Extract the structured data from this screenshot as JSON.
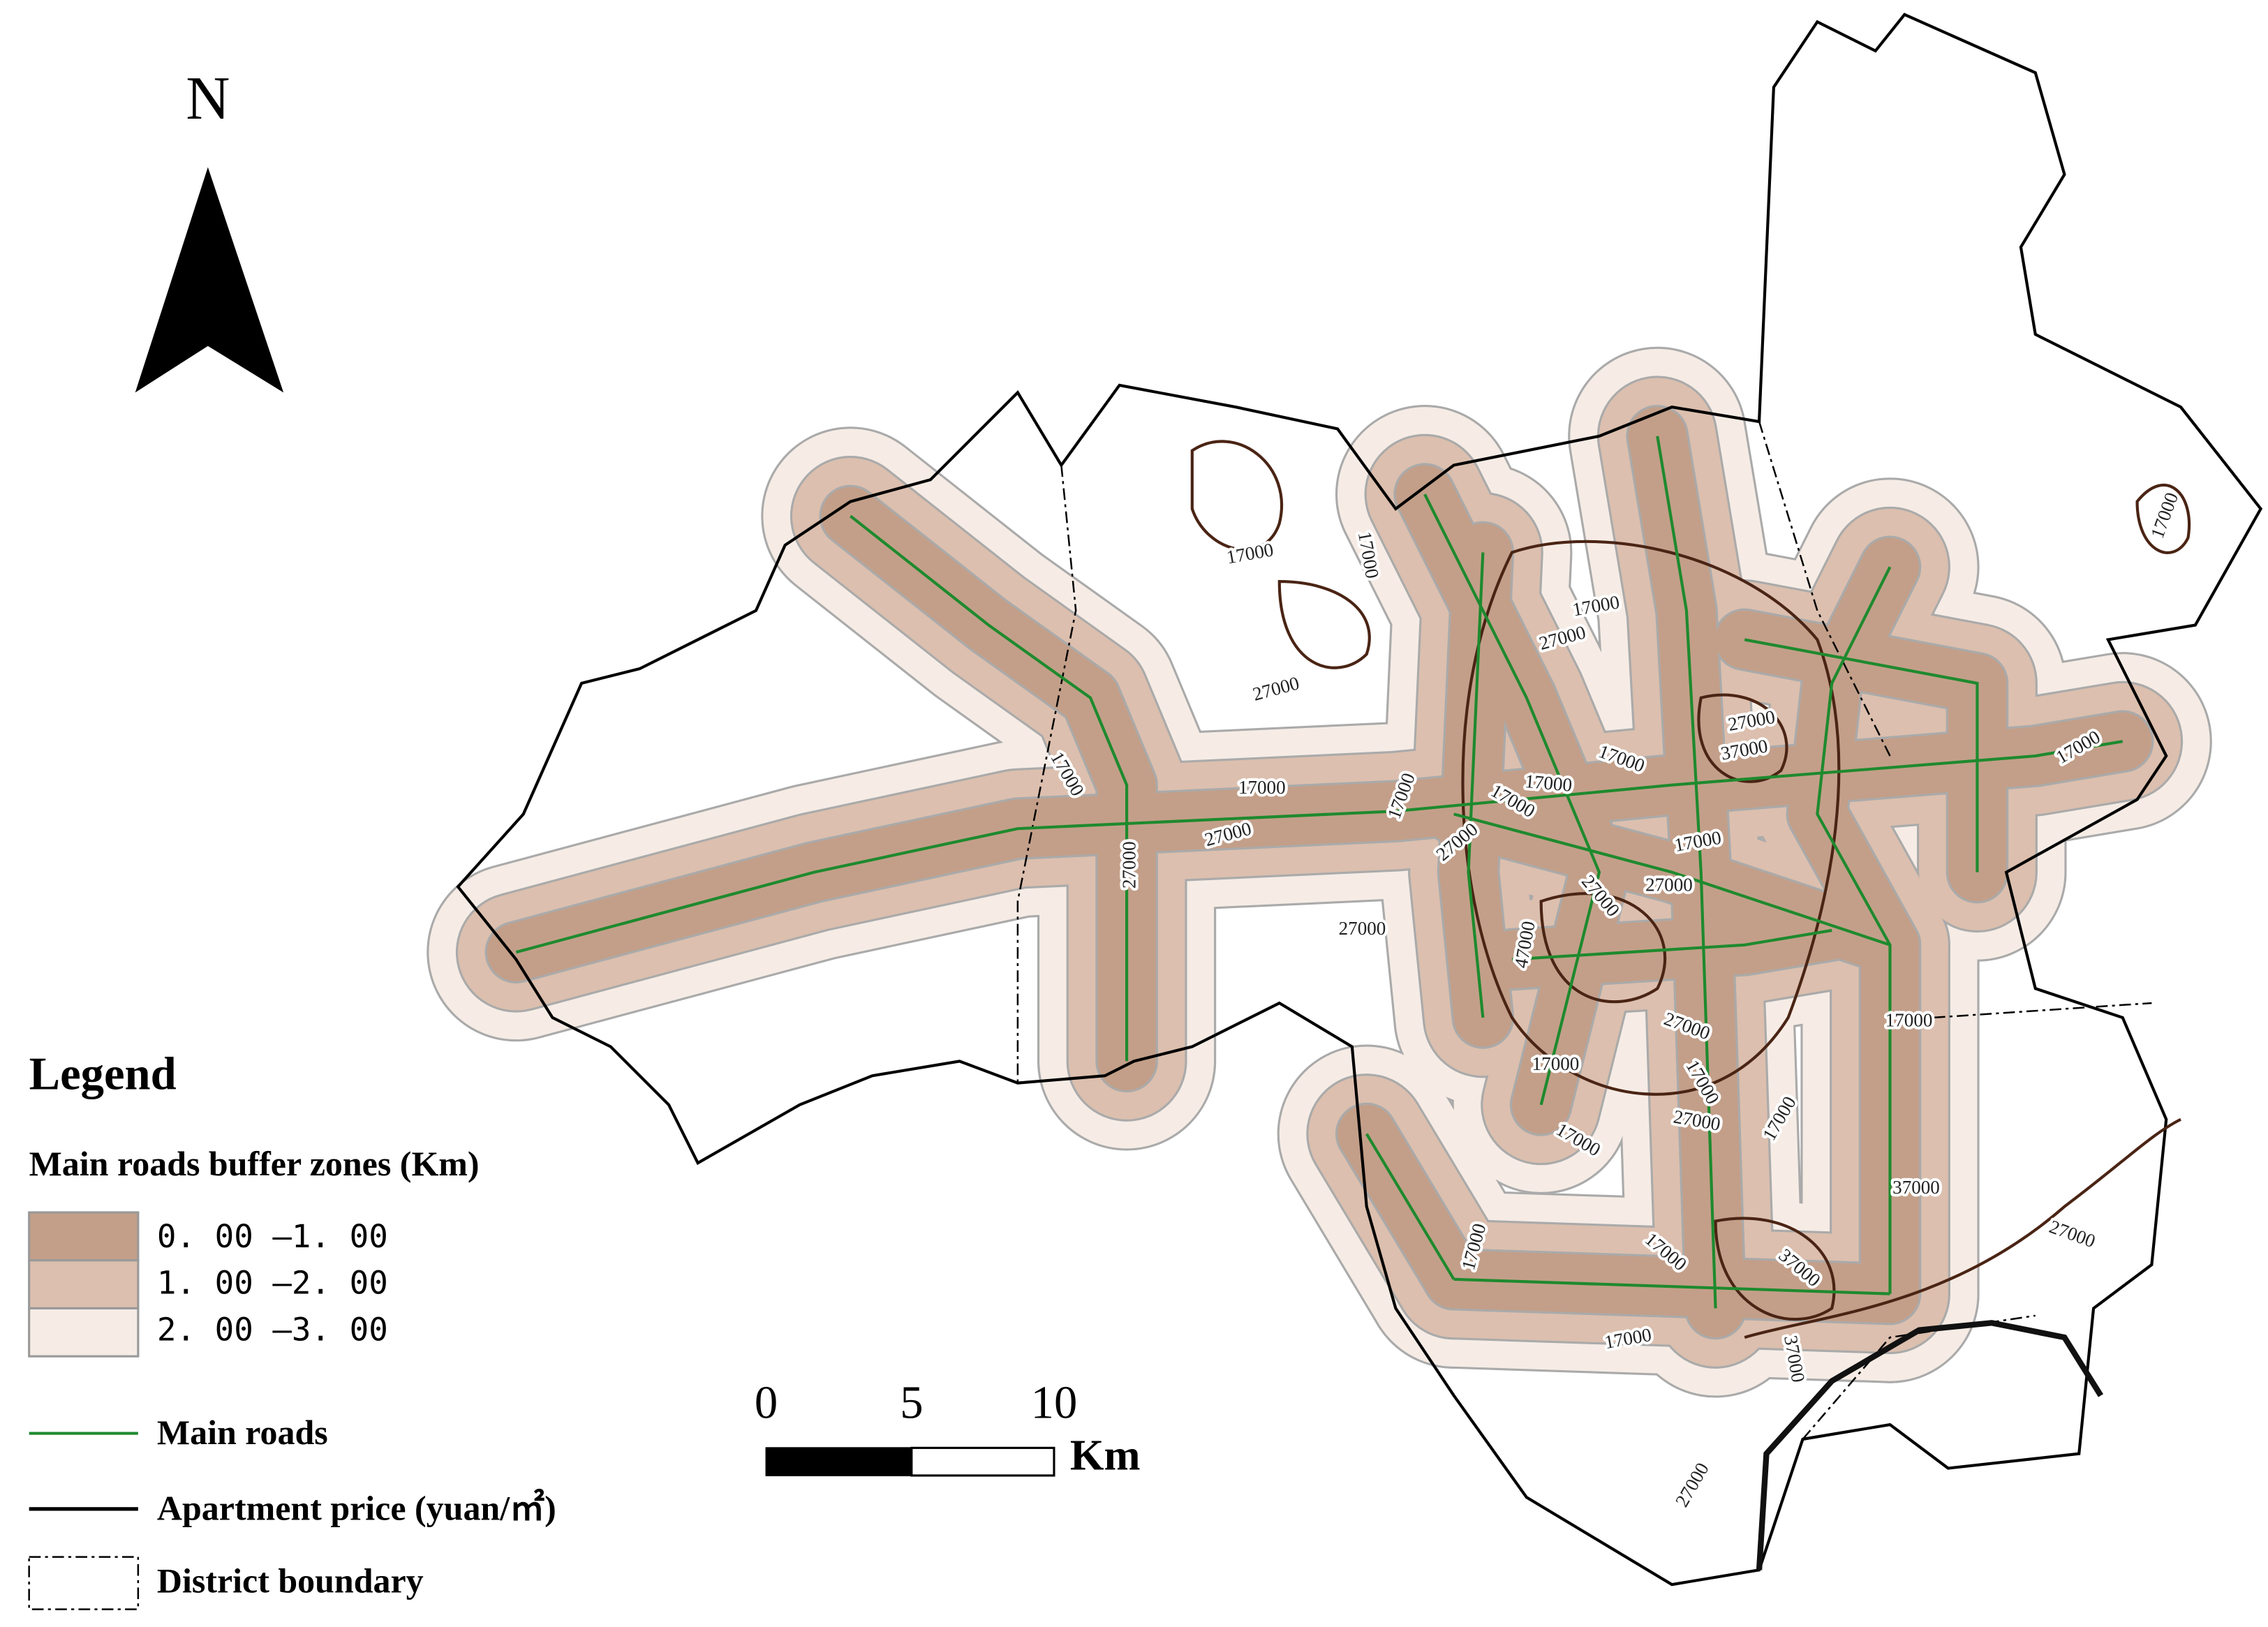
{
  "map": {
    "north_label": "N",
    "scale_bar": {
      "labels": [
        "0",
        "5",
        "10"
      ],
      "unit": "Km"
    },
    "legend": {
      "title": "Legend",
      "buffer_title": "Main roads buffer zones (Km)",
      "buffer_classes": [
        {
          "label": "0. 00 —1. 00",
          "color": "#c39f89"
        },
        {
          "label": "1. 00 —2. 00",
          "color": "#dcbfae"
        },
        {
          "label": "2. 00 —3. 00",
          "color": "#f6ece5"
        }
      ],
      "main_roads": "Main roads",
      "main_roads_color": "#1e8a2e",
      "apartment_price": "Apartment price (yuan/㎡)",
      "district_boundary": "District boundary"
    },
    "contour_labels": [
      "17000",
      "17000",
      "27000",
      "17000",
      "27000",
      "17000",
      "27000",
      "37000",
      "17000",
      "17000",
      "17000",
      "17000",
      "17000",
      "17000",
      "27000",
      "17000",
      "27000",
      "27000",
      "17000",
      "27000",
      "27000",
      "27000",
      "47000",
      "17000",
      "27000",
      "17000",
      "17000",
      "27000",
      "17000",
      "17000",
      "37000",
      "17000",
      "17000",
      "37000",
      "27000",
      "17000",
      "37000",
      "27000"
    ]
  }
}
